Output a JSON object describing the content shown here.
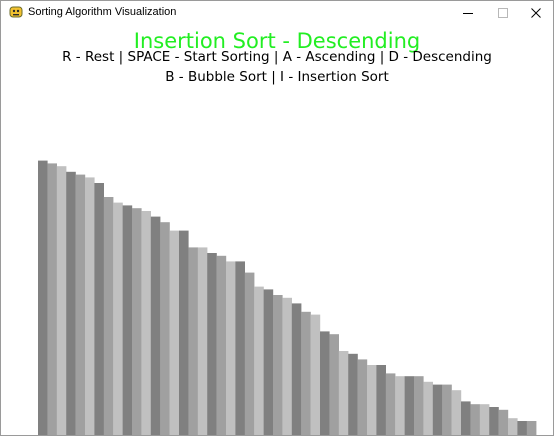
{
  "window": {
    "title": "Sorting Algorithm Visualization"
  },
  "header": {
    "algorithm_title": "Insertion Sort - Descending",
    "controls_line1": "R - Rest | SPACE - Start Sorting | A - Ascending | D - Descending",
    "controls_line2": "B - Bubble Sort | I - Insertion Sort"
  },
  "colors": {
    "title": "#22ee22",
    "bar_shades": [
      "#808080",
      "#a0a0a0",
      "#c0c0c0"
    ]
  },
  "icons": {
    "app": "pygame-snake-icon",
    "minimize": "minimize-icon",
    "maximize": "maximize-icon",
    "close": "close-icon"
  },
  "chart_data": {
    "type": "bar",
    "values": [
      98,
      97,
      96,
      94,
      93,
      92,
      90,
      85,
      83,
      82,
      81,
      80,
      78,
      76,
      73,
      73,
      67,
      67,
      65,
      64,
      62,
      62,
      58,
      53,
      52,
      50,
      49,
      47,
      44,
      43,
      37,
      36,
      30,
      29,
      27,
      25,
      25,
      22,
      21,
      21,
      21,
      19,
      18,
      18,
      16,
      12,
      11,
      11,
      10,
      9,
      6,
      5,
      5
    ],
    "ylim": [
      0,
      100
    ]
  }
}
